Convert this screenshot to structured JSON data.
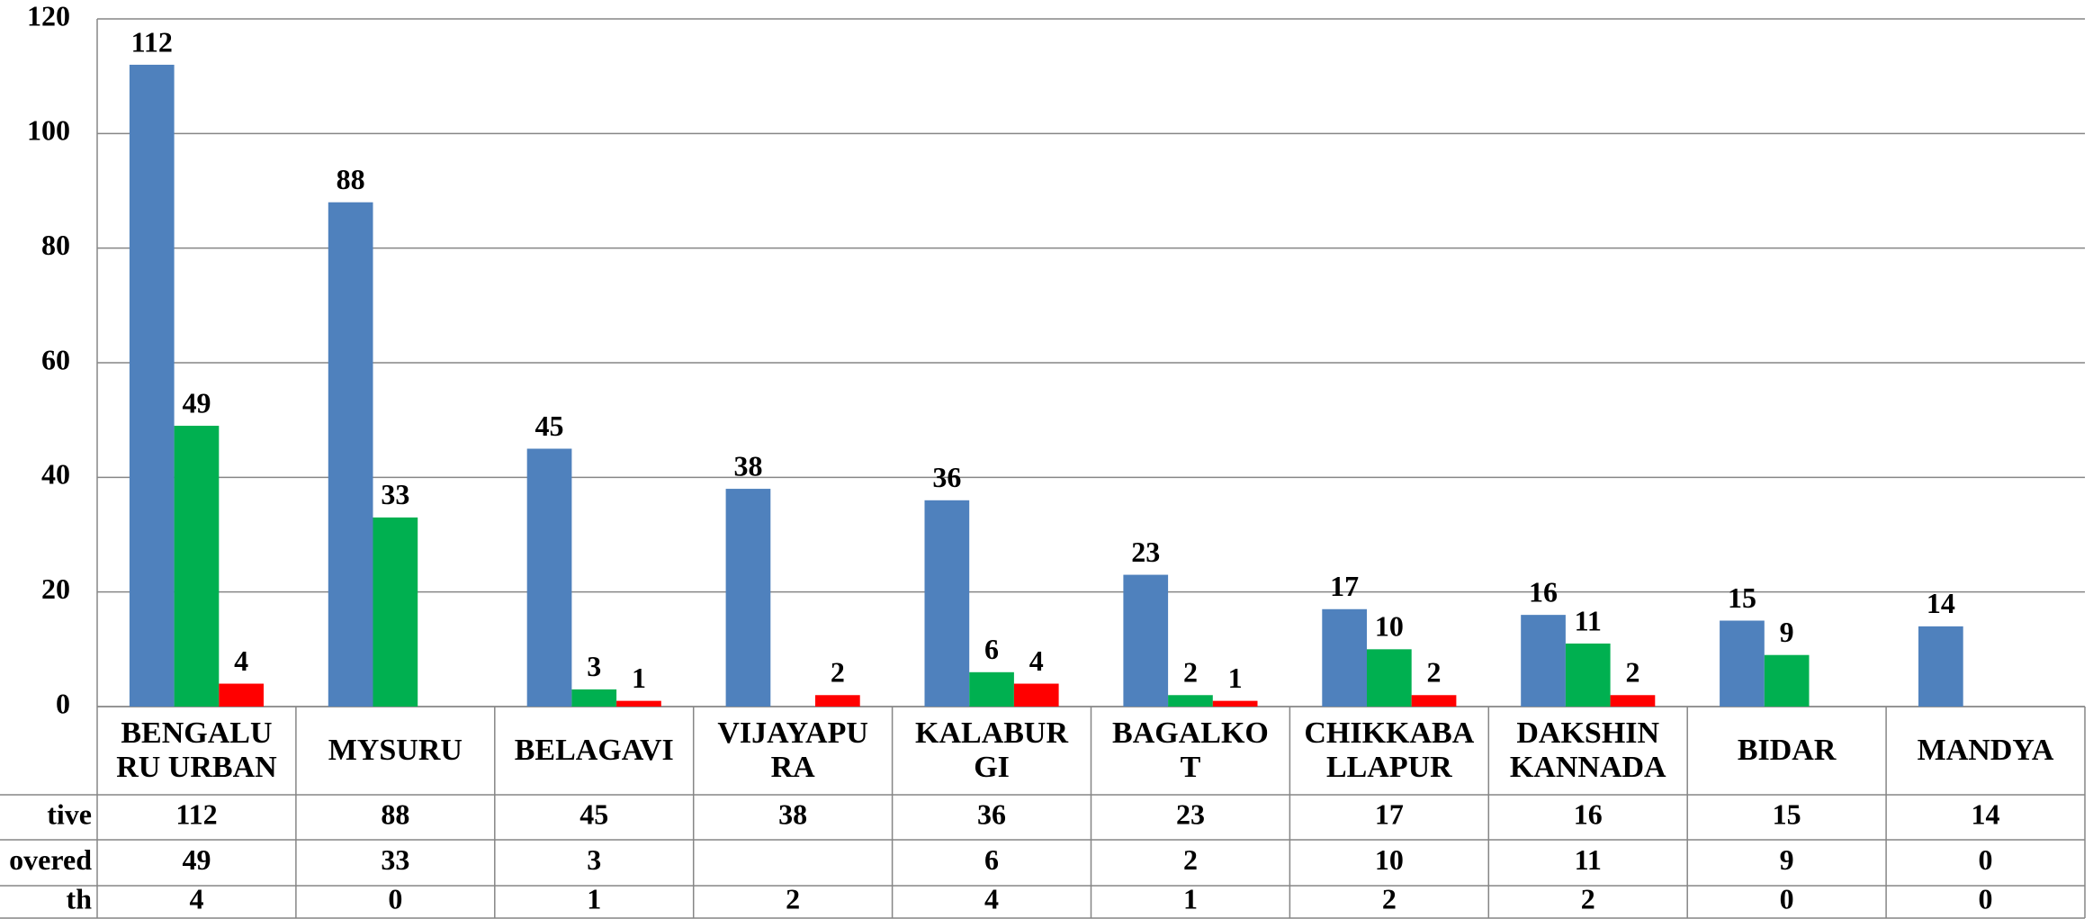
{
  "chart_data": {
    "type": "bar",
    "categories": [
      "BENGALU\nRU URBAN",
      "MYSURU",
      "BELAGAVI",
      "VIJAYAPU\nRA",
      "KALABUR\nGI",
      "BAGALKO\nT",
      "CHIKKABA\nLLAPUR",
      "DAKSHIN\nKANNADA",
      "BIDAR",
      "MANDYA"
    ],
    "series": [
      {
        "name": "tive",
        "color": "#4f81bd",
        "values": [
          112,
          88,
          45,
          38,
          36,
          23,
          17,
          16,
          15,
          14
        ]
      },
      {
        "name": "overed",
        "color": "#00b050",
        "values": [
          49,
          33,
          3,
          null,
          6,
          2,
          10,
          11,
          9,
          0
        ]
      },
      {
        "name": "th",
        "color": "#ff0000",
        "values": [
          4,
          0,
          1,
          2,
          4,
          1,
          2,
          2,
          0,
          0
        ]
      }
    ],
    "ylim": [
      0,
      120
    ],
    "yticks": [
      0,
      20,
      40,
      60,
      80,
      100,
      120
    ],
    "grid": true
  }
}
